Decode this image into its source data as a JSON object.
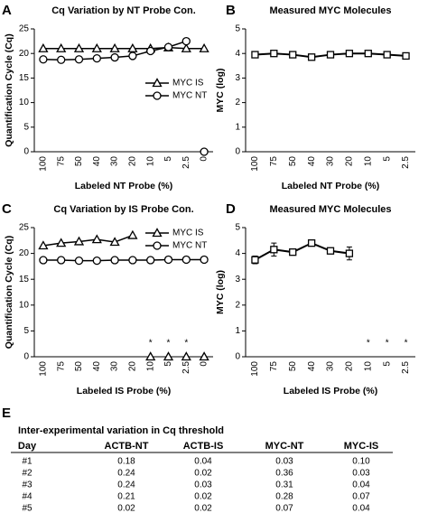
{
  "chart_data": [
    {
      "type": "line",
      "panel": "A",
      "title": "Cq Variation by NT Probe Con.",
      "ylabel": "Quantification Cycle (Cq)",
      "xlabel": "Labeled NT Probe (%)",
      "categories": [
        "100",
        "75",
        "50",
        "40",
        "30",
        "20",
        "10",
        "5",
        "2.5",
        "0"
      ],
      "ylim": [
        0,
        25
      ],
      "yticks": [
        0,
        5,
        10,
        15,
        20,
        25
      ],
      "legend": "right",
      "series": [
        {
          "name": "MYC IS",
          "color": "#000000",
          "marker": "triangle",
          "values": [
            21,
            21,
            21,
            21,
            21,
            21,
            21,
            21.2,
            21,
            21
          ]
        },
        {
          "name": "MYC NT",
          "color": "#000000",
          "marker": "circle",
          "values": [
            18.8,
            18.7,
            18.8,
            19,
            19.2,
            19.5,
            20.5,
            21.3,
            22.5,
            0
          ]
        }
      ]
    },
    {
      "type": "line",
      "panel": "B",
      "title": "Measured MYC Molecules",
      "ylabel": "MYC (log)",
      "xlabel": "Labeled NT Probe (%)",
      "categories": [
        "100",
        "75",
        "50",
        "40",
        "30",
        "20",
        "10",
        "5",
        "2.5"
      ],
      "ylim": [
        0,
        5
      ],
      "yticks": [
        0,
        1,
        2,
        3,
        4,
        5
      ],
      "series": [
        {
          "color": "#000000",
          "marker": "square",
          "values": [
            3.95,
            4.0,
            3.95,
            3.85,
            3.95,
            4.0,
            4.0,
            3.95,
            3.9
          ],
          "errors": [
            0.1,
            0.1,
            0.05,
            0.1,
            0.05,
            0.05,
            0.05,
            0.1,
            0.1
          ]
        }
      ]
    },
    {
      "type": "line",
      "panel": "C",
      "title": "Cq Variation by IS Probe Con.",
      "ylabel": "Quantification Cycle (Cq)",
      "xlabel": "Labeled IS Probe (%)",
      "categories": [
        "100",
        "75",
        "50",
        "40",
        "30",
        "20",
        "10",
        "5",
        "2.5",
        "0"
      ],
      "ylim": [
        0,
        25
      ],
      "yticks": [
        0,
        5,
        10,
        15,
        20,
        25
      ],
      "legend": "upper right",
      "series": [
        {
          "name": "MYC IS",
          "color": "#000000",
          "marker": "triangle",
          "values": [
            21.5,
            22,
            22.3,
            22.7,
            22.2,
            23.5,
            0,
            0,
            0,
            0
          ]
        },
        {
          "name": "MYC NT",
          "color": "#000000",
          "marker": "circle",
          "values": [
            18.7,
            18.7,
            18.6,
            18.6,
            18.7,
            18.7,
            18.7,
            18.8,
            18.8,
            18.8
          ]
        }
      ],
      "annotations": [
        {
          "x": "10",
          "text": "*"
        },
        {
          "x": "5",
          "text": "*"
        },
        {
          "x": "2.5",
          "text": "*"
        }
      ]
    },
    {
      "type": "line",
      "panel": "D",
      "title": "Measured MYC Molecules",
      "ylabel": "MYC (log)",
      "xlabel": "Labeled IS Probe (%)",
      "categories": [
        "100",
        "75",
        "50",
        "40",
        "30",
        "20",
        "10",
        "5",
        "2.5"
      ],
      "ylim": [
        0,
        5
      ],
      "yticks": [
        0,
        1,
        2,
        3,
        4,
        5
      ],
      "series": [
        {
          "color": "#000000",
          "marker": "square",
          "values": [
            3.75,
            4.15,
            4.05,
            4.4,
            4.1,
            4.0,
            null,
            null,
            null
          ],
          "errors": [
            0.15,
            0.25,
            0.1,
            0.1,
            0.1,
            0.25,
            null,
            null,
            null
          ]
        }
      ],
      "annotations": [
        {
          "x": "10",
          "text": "*"
        },
        {
          "x": "5",
          "text": "*"
        },
        {
          "x": "2.5",
          "text": "*"
        }
      ]
    }
  ],
  "table": {
    "panel": "E",
    "title": "Inter-experimental variation in Cq threshold",
    "columns": [
      "Day",
      "ACTB-NT",
      "ACTB-IS",
      "MYC-NT",
      "MYC-IS"
    ],
    "rows": [
      [
        "#1",
        "0.18",
        "0.04",
        "0.03",
        "0.10"
      ],
      [
        "#2",
        "0.24",
        "0.02",
        "0.36",
        "0.03"
      ],
      [
        "#3",
        "0.24",
        "0.03",
        "0.31",
        "0.04"
      ],
      [
        "#4",
        "0.21",
        "0.02",
        "0.28",
        "0.07"
      ],
      [
        "#5",
        "0.02",
        "0.02",
        "0.07",
        "0.04"
      ]
    ]
  }
}
